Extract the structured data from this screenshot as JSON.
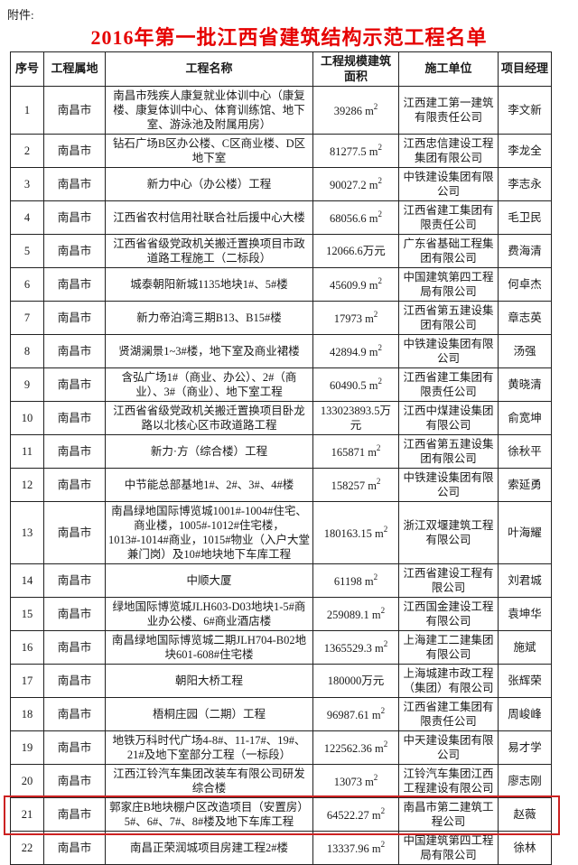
{
  "document": {
    "attachment_label": "附件:",
    "title": "2016年第一批江西省建筑结构示范工程名单",
    "title_color": "#e60000"
  },
  "table": {
    "headers": [
      "序号",
      "工程属地",
      "工程名称",
      "工程规模建筑面积",
      "施工单位",
      "项目经理"
    ],
    "rows": [
      {
        "no": "1",
        "location": "南昌市",
        "name": "南昌市残疾人康复就业体训中心（康复楼、康复体训中心、体育训练馆、地下室、游泳池及附属用房）",
        "scale": "39286",
        "scale_unit": "m2",
        "contractor": "江西建工第一建筑有限责任公司",
        "manager": "李文新"
      },
      {
        "no": "2",
        "location": "南昌市",
        "name": "钻石广场B区办公楼、C区商业楼、D区地下室",
        "scale": "81277.5",
        "scale_unit": "m2",
        "contractor": "江西忠信建设工程集团有限公司",
        "manager": "李龙全"
      },
      {
        "no": "3",
        "location": "南昌市",
        "name": "新力中心（办公楼）工程",
        "scale": "90027.2",
        "scale_unit": "m2",
        "contractor": "中铁建设集团有限公司",
        "manager": "李志永"
      },
      {
        "no": "4",
        "location": "南昌市",
        "name": "江西省农村信用社联合社后援中心大楼",
        "scale": "68056.6",
        "scale_unit": "m2",
        "contractor": "江西省建工集团有限责任公司",
        "manager": "毛卫民"
      },
      {
        "no": "5",
        "location": "南昌市",
        "name": "江西省省级党政机关搬迁置换项目市政道路工程施工（二标段）",
        "scale": "12066.6",
        "scale_unit": "万元",
        "contractor": "广东省基础工程集团有限公司",
        "manager": "费海清"
      },
      {
        "no": "6",
        "location": "南昌市",
        "name": "城泰朝阳新城1135地块1#、5#楼",
        "scale": "45609.9",
        "scale_unit": "m2",
        "contractor": "中国建筑第四工程局有限公司",
        "manager": "何卓杰"
      },
      {
        "no": "7",
        "location": "南昌市",
        "name": "新力帝泊湾三期B13、B15#楼",
        "scale": "17973",
        "scale_unit": "m2",
        "contractor": "江西省第五建设集团有限公司",
        "manager": "章志英"
      },
      {
        "no": "8",
        "location": "南昌市",
        "name": "贤湖澜景1~3#楼，地下室及商业裙楼",
        "scale": "42894.9",
        "scale_unit": "m2",
        "contractor": "中铁建设集团有限公司",
        "manager": "汤强"
      },
      {
        "no": "9",
        "location": "南昌市",
        "name": "含弘广场1#（商业、办公）、2#（商业）、3#（商业）、地下室工程",
        "scale": "60490.5",
        "scale_unit": "m2",
        "contractor": "江西省建工集团有限责任公司",
        "manager": "黄晓清"
      },
      {
        "no": "10",
        "location": "南昌市",
        "name": "江西省省级党政机关搬迁置换项目卧龙路以北核心区市政道路工程",
        "scale": "133023893.5",
        "scale_unit": "万元",
        "contractor": "江西中煤建设集团有限公司",
        "manager": "俞宽坤"
      },
      {
        "no": "11",
        "location": "南昌市",
        "name": "新力·方（综合楼）工程",
        "scale": "165871",
        "scale_unit": "m2",
        "contractor": "江西省第五建设集团有限公司",
        "manager": "徐秋平"
      },
      {
        "no": "12",
        "location": "南昌市",
        "name": "中节能总部基地1#、2#、3#、4#楼",
        "scale": "158257",
        "scale_unit": "m2",
        "contractor": "中铁建设集团有限公司",
        "manager": "索延勇"
      },
      {
        "no": "13",
        "location": "南昌市",
        "name": "南昌绿地国际博览城1001#-1004#住宅、商业楼，1005#-1012#住宅楼，1013#-1014#商业，1015#物业（入户大堂兼门岗）及10#地块地下车库工程",
        "scale": "180163.15",
        "scale_unit": "m2",
        "contractor": "浙江双堰建筑工程有限公司",
        "manager": "叶海耀"
      },
      {
        "no": "14",
        "location": "南昌市",
        "name": "中顺大厦",
        "scale": "61198",
        "scale_unit": "m2",
        "contractor": "江西省建设工程有限公司",
        "manager": "刘君城"
      },
      {
        "no": "15",
        "location": "南昌市",
        "name": "绿地国际博览城JLH603-D03地块1-5#商业办公楼、6#商业酒店楼",
        "scale": "259089.1",
        "scale_unit": "m2",
        "contractor": "江西国金建设工程有限公司",
        "manager": "袁坤华"
      },
      {
        "no": "16",
        "location": "南昌市",
        "name": "南昌绿地国际博览城二期JLH704-B02地块601-608#住宅楼",
        "scale": "1365529.3",
        "scale_unit": "m2",
        "contractor": "上海建工二建集团有限公司",
        "manager": "施斌"
      },
      {
        "no": "17",
        "location": "南昌市",
        "name": "朝阳大桥工程",
        "scale": "180000",
        "scale_unit": "万元",
        "contractor": "上海城建市政工程（集团）有限公司",
        "manager": "张辉荣"
      },
      {
        "no": "18",
        "location": "南昌市",
        "name": "梧桐庄园（二期）工程",
        "scale": "96987.61",
        "scale_unit": "m2",
        "contractor": "江西省建工集团有限责任公司",
        "manager": "周峻峰"
      },
      {
        "no": "19",
        "location": "南昌市",
        "name": "地铁万科时代广场4-8#、11-17#、19#、21#及地下室部分工程（一标段）",
        "scale": "122562.36",
        "scale_unit": "m2",
        "contractor": "中天建设集团有限公司",
        "manager": "易才学"
      },
      {
        "no": "20",
        "location": "南昌市",
        "name": "江西江铃汽车集团改装车有限公司研发综合楼",
        "scale": "13073",
        "scale_unit": "m2",
        "contractor": "江铃汽车集团江西工程建设有限公司",
        "manager": "廖志刚"
      },
      {
        "no": "21",
        "location": "南昌市",
        "name": "郭家庄B地块棚户区改造项目（安置房）5#、6#、7#、8#楼及地下车库工程",
        "scale": "64522.27",
        "scale_unit": "m2",
        "contractor": "南昌市第二建筑工程公司",
        "manager": "赵薇"
      },
      {
        "no": "22",
        "location": "南昌市",
        "name": "南昌正荣润城项目房建工程2#楼",
        "scale": "13337.96",
        "scale_unit": "m2",
        "contractor": "中国建筑第四工程局有限公司",
        "manager": "徐林"
      }
    ],
    "highlight": {
      "row_no": "21",
      "color": "#cc2222"
    }
  }
}
